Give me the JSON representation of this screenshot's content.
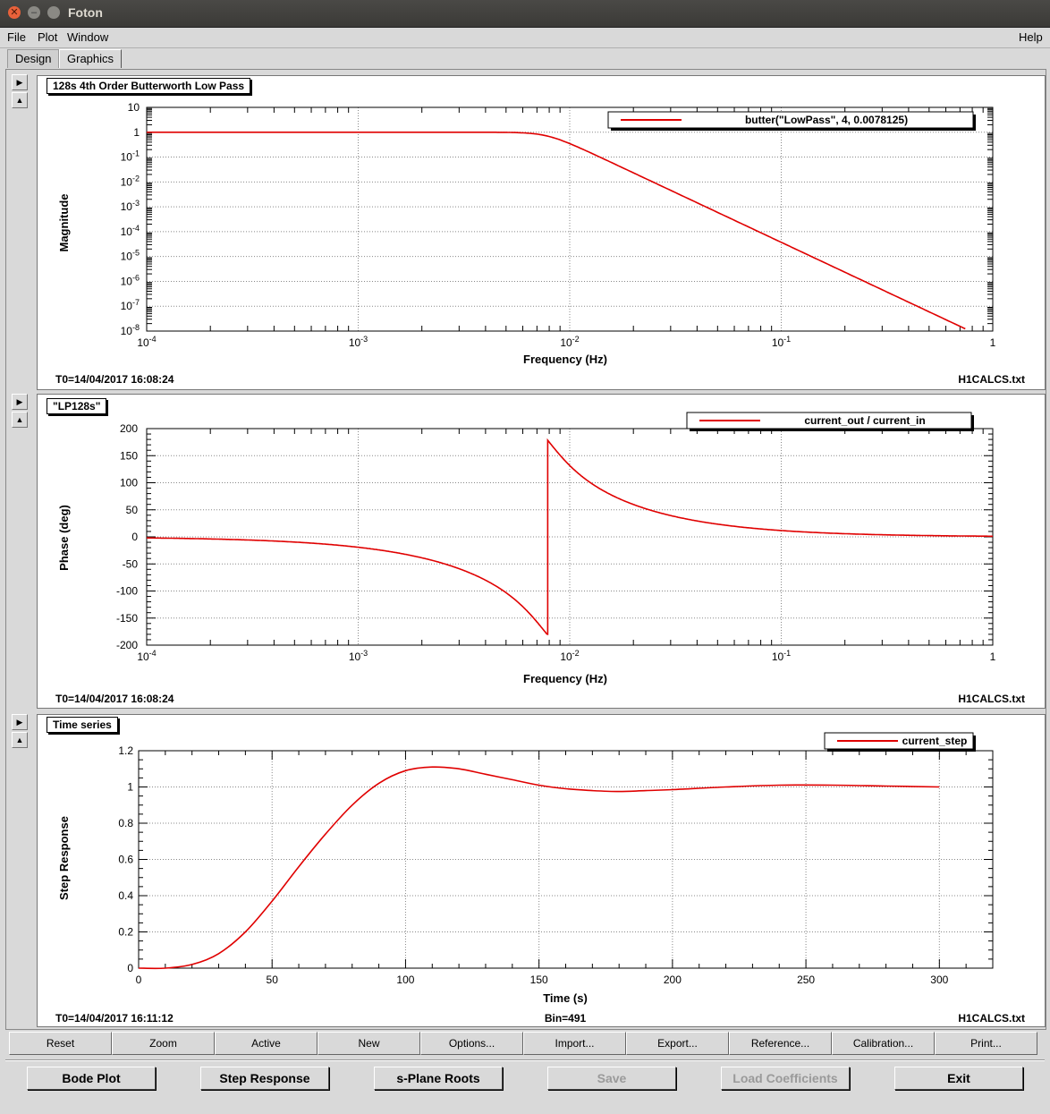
{
  "window": {
    "title": "Foton"
  },
  "menu": {
    "file": "File",
    "plot": "Plot",
    "window": "Window",
    "help": "Help"
  },
  "tabs": {
    "design": "Design",
    "graphics": "Graphics"
  },
  "panels": {
    "magnitude": {
      "title": "128s 4th Order Butterworth Low Pass",
      "legend": "butter(\"LowPass\", 4, 0.0078125)",
      "xlabel": "Frequency (Hz)",
      "ylabel": "Magnitude",
      "t0": "T0=14/04/2017 16:08:24",
      "file": "H1CALCS.txt",
      "xticks": [
        {
          "base": "10",
          "exp": "-4"
        },
        {
          "base": "10",
          "exp": "-3"
        },
        {
          "base": "10",
          "exp": "-2"
        },
        {
          "base": "10",
          "exp": "-1"
        },
        {
          "base": "1",
          "exp": ""
        }
      ],
      "yticks": [
        {
          "base": "10",
          "exp": ""
        },
        {
          "base": "1",
          "exp": ""
        },
        {
          "base": "10",
          "exp": "-1"
        },
        {
          "base": "10",
          "exp": "-2"
        },
        {
          "base": "10",
          "exp": "-3"
        },
        {
          "base": "10",
          "exp": "-4"
        },
        {
          "base": "10",
          "exp": "-5"
        },
        {
          "base": "10",
          "exp": "-6"
        },
        {
          "base": "10",
          "exp": "-7"
        },
        {
          "base": "10",
          "exp": "-8"
        }
      ]
    },
    "phase": {
      "title": "\"LP128s\"",
      "legend": "current_out / current_in",
      "xlabel": "Frequency (Hz)",
      "ylabel": "Phase (deg)",
      "t0": "T0=14/04/2017 16:08:24",
      "file": "H1CALCS.txt",
      "yticks": [
        "200",
        "150",
        "100",
        "50",
        "0",
        "-50",
        "-100",
        "-150",
        "-200"
      ]
    },
    "step": {
      "title": "Time series",
      "legend": "current_step",
      "xlabel": "Time (s)",
      "ylabel": "Step Response",
      "t0": "T0=14/04/2017 16:11:12",
      "bin": "Bin=491",
      "file": "H1CALCS.txt",
      "xticks": [
        "0",
        "50",
        "100",
        "150",
        "200",
        "250",
        "300"
      ],
      "yticks": [
        "1.2",
        "1",
        "0.8",
        "0.6",
        "0.4",
        "0.2",
        "0"
      ]
    }
  },
  "plot_buttons": [
    "Reset",
    "Zoom",
    "Active",
    "New",
    "Options...",
    "Import...",
    "Export...",
    "Reference...",
    "Calibration...",
    "Print..."
  ],
  "bottom_buttons": {
    "bode": "Bode Plot",
    "step": "Step Response",
    "splane": "s-Plane Roots",
    "save": "Save",
    "load": "Load Coefficients",
    "exit": "Exit"
  },
  "chart_data": [
    {
      "type": "line",
      "title": "128s 4th Order Butterworth Low Pass",
      "xlabel": "Frequency (Hz)",
      "ylabel": "Magnitude",
      "xscale": "log",
      "yscale": "log",
      "xlim": [
        0.0001,
        1
      ],
      "ylim": [
        1e-08,
        10
      ],
      "grid": true,
      "legend_position": "top-right",
      "series": [
        {
          "name": "butter(\"LowPass\", 4, 0.0078125)",
          "color": "#e00000",
          "x": [
            0.0001,
            0.001,
            0.005,
            0.0078125,
            0.01,
            0.02,
            0.05,
            0.1,
            0.3,
            0.75
          ],
          "y": [
            1,
            1,
            0.97,
            0.707,
            0.37,
            0.0236,
            0.00059,
            3.73e-05,
            4.6e-07,
            1.2e-08
          ]
        }
      ]
    },
    {
      "type": "line",
      "title": "\"LP128s\"",
      "xlabel": "Frequency (Hz)",
      "ylabel": "Phase (deg)",
      "xscale": "log",
      "xlim": [
        0.0001,
        1
      ],
      "ylim": [
        -200,
        200
      ],
      "grid": true,
      "legend_position": "top-right",
      "series": [
        {
          "name": "current_out / current_in",
          "color": "#e00000",
          "x": [
            0.0001,
            0.001,
            0.003,
            0.005,
            0.0075,
            0.0078,
            0.008,
            0.01,
            0.02,
            0.05,
            0.1,
            0.3,
            1
          ],
          "y": [
            -1.9,
            -19,
            -60,
            -110,
            -180,
            178,
            176,
            142,
            60,
            22,
            11,
            3.5,
            1
          ]
        }
      ]
    },
    {
      "type": "line",
      "title": "Time series",
      "xlabel": "Time (s)",
      "ylabel": "Step Response",
      "xlim": [
        0,
        320
      ],
      "ylim": [
        0,
        1.2
      ],
      "grid": true,
      "legend_position": "top-right",
      "series": [
        {
          "name": "current_step",
          "color": "#e00000",
          "x": [
            0,
            10,
            20,
            30,
            40,
            50,
            60,
            70,
            80,
            90,
            100,
            110,
            120,
            130,
            140,
            150,
            160,
            170,
            180,
            190,
            200,
            220,
            240,
            260,
            280,
            300
          ],
          "y": [
            0,
            0,
            0.02,
            0.08,
            0.2,
            0.37,
            0.56,
            0.74,
            0.9,
            1.02,
            1.09,
            1.11,
            1.1,
            1.07,
            1.04,
            1.01,
            0.99,
            0.98,
            0.975,
            0.98,
            0.985,
            1.0,
            1.01,
            1.01,
            1.005,
            1.0
          ]
        }
      ]
    }
  ]
}
